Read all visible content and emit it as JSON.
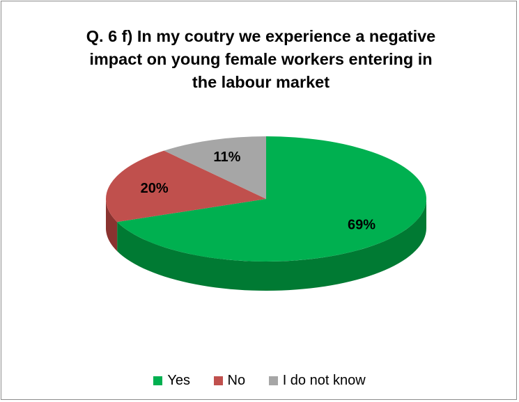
{
  "chart_data": {
    "type": "pie",
    "style": "3d",
    "title_lines": [
      "Q. 6 f) In my coutry we experience a negative",
      "impact on young female workers entering in",
      "the labour market"
    ],
    "categories": [
      "Yes",
      "No",
      "I do not know"
    ],
    "values": [
      69,
      20,
      11
    ],
    "value_labels": [
      "69%",
      "20%",
      "11%"
    ],
    "colors": [
      "#00b050",
      "#c0504d",
      "#a6a6a6"
    ],
    "side_colors": [
      "#007a33",
      "#8a3330",
      "#7a7a7a"
    ],
    "start_angle_deg": 0,
    "direction": "clockwise",
    "legend_position": "bottom"
  }
}
